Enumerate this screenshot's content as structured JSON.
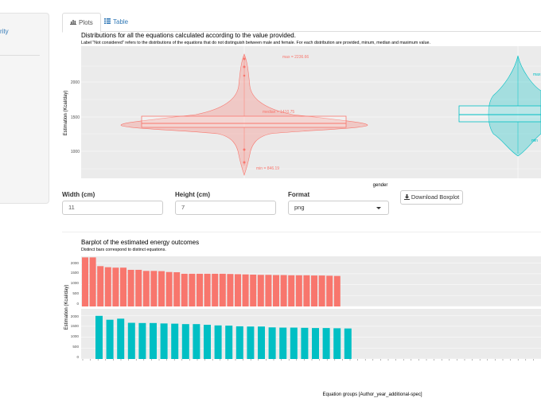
{
  "sidebar": {
    "link_fragment": "rity"
  },
  "tabs": [
    {
      "label": "Plots",
      "icon": "bar-chart-icon",
      "active": true
    },
    {
      "label": "Table",
      "icon": "table-icon",
      "active": false
    }
  ],
  "boxplot": {
    "title": "Distributions for all the equations calculated according to the value provided.",
    "subtitle": "Label \"Not considered\" refers to the distributions of the equations that do not distinguish between male and female. For each distribution are provided, minum, median and maximum value.",
    "ylabel": "Estimation (Kcal/day)",
    "xlabel": "gender",
    "yticks": [
      "2000",
      "1500",
      "1000"
    ],
    "annotations": {
      "max": "max = 2236.66",
      "median": "median = 1410.75",
      "min": "min = 846.19",
      "max2": "max",
      "min2": "min"
    },
    "colors": {
      "red": "#f8766d",
      "teal": "#00bfc4"
    }
  },
  "form": {
    "width_label": "Width (cm)",
    "width_value": "11",
    "height_label": "Height (cm)",
    "height_value": "7",
    "format_label": "Format",
    "format_value": "png",
    "download_label": "Download Boxplot"
  },
  "barplot": {
    "title": "Barplot of the estimated energy outcomes",
    "subtitle": "Distinct bars correspond to distinct equations.",
    "ylabel": "Estimation (Kcal/day)",
    "xlabel": "Equation groups [Author_year_additional-spec]",
    "yticks": [
      "2000",
      "1500",
      "1000",
      "500",
      "0"
    ]
  },
  "chart_data": [
    {
      "type": "violin",
      "title": "Distributions for all the equations calculated according to the value provided.",
      "xlabel": "gender",
      "ylabel": "Estimation (Kcal/day)",
      "groups": [
        {
          "color": "#f8766d",
          "min": 846.19,
          "median": 1410.75,
          "max": 2236.66,
          "q1": 1380,
          "q3": 1540
        },
        {
          "color": "#00bfc4",
          "q1": 1460,
          "q3": 1680,
          "median": 1560
        }
      ]
    },
    {
      "type": "bar",
      "title": "Barplot of the estimated energy outcomes",
      "xlabel": "Equation groups [Author_year_additional-spec]",
      "ylabel": "Estimation (Kcal/day)",
      "ylim": [
        0,
        2300
      ],
      "series": [
        {
          "color": "#f8766d",
          "values": [
            2250,
            2250,
            1850,
            1800,
            1780,
            1780,
            1680,
            1680,
            1630,
            1630,
            1620,
            1580,
            1570,
            1500,
            1500,
            1500,
            1500,
            1500,
            1500,
            1490,
            1480,
            1470,
            1460,
            1450,
            1450,
            1440,
            1440,
            1430,
            1430,
            1430,
            1420,
            1420,
            1410,
            1400
          ]
        },
        {
          "color": "#00bfc4",
          "values": [
            1980,
            1800,
            1850,
            1660,
            1650,
            1650,
            1630,
            1620,
            1600,
            1600,
            1570,
            1540,
            1530,
            1500,
            1490,
            1490,
            1450,
            1440,
            1440,
            1430,
            1420,
            1420,
            1410,
            1400
          ]
        }
      ]
    }
  ]
}
